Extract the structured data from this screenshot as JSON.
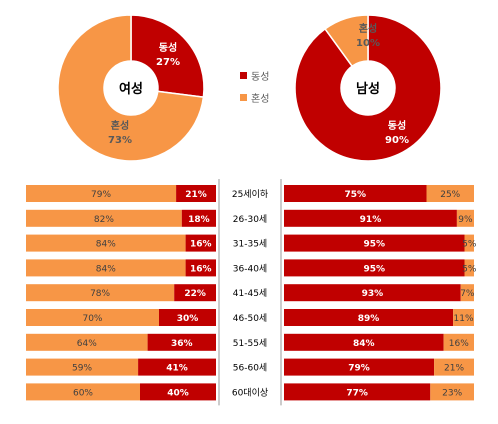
{
  "colors": {
    "same_sex": "#c00000",
    "mixed": "#f79646",
    "divider": "#999999"
  },
  "chart_data": [
    {
      "type": "pie",
      "center_label": "여성",
      "slices": [
        {
          "name": "동성",
          "value": 27,
          "label": "27%"
        },
        {
          "name": "혼성",
          "value": 73,
          "label": "73%"
        }
      ]
    },
    {
      "type": "pie",
      "center_label": "남성",
      "slices": [
        {
          "name": "동성",
          "value": 90,
          "label": "90%"
        },
        {
          "name": "혼성",
          "value": 10,
          "label": "10%"
        }
      ]
    },
    {
      "type": "bar",
      "orientation": "horizontal",
      "stacked": true,
      "categories": [
        "25세이하",
        "26-30세",
        "31-35세",
        "36-40세",
        "41-45세",
        "46-50세",
        "51-55세",
        "56-60세",
        "60대이상"
      ],
      "female": {
        "series": [
          {
            "name": "혼성",
            "values": [
              79,
              82,
              84,
              84,
              78,
              70,
              64,
              59,
              60
            ]
          },
          {
            "name": "동성",
            "values": [
              21,
              18,
              16,
              16,
              22,
              30,
              36,
              41,
              40
            ]
          }
        ]
      },
      "male": {
        "series": [
          {
            "name": "동성",
            "values": [
              75,
              91,
              95,
              95,
              93,
              89,
              84,
              79,
              77
            ]
          },
          {
            "name": "혼성",
            "values": [
              25,
              9,
              5,
              5,
              7,
              11,
              16,
              21,
              23
            ]
          }
        ]
      }
    }
  ],
  "legend": [
    {
      "name": "동성",
      "color": "#c00000"
    },
    {
      "name": "혼성",
      "color": "#f79646"
    }
  ]
}
